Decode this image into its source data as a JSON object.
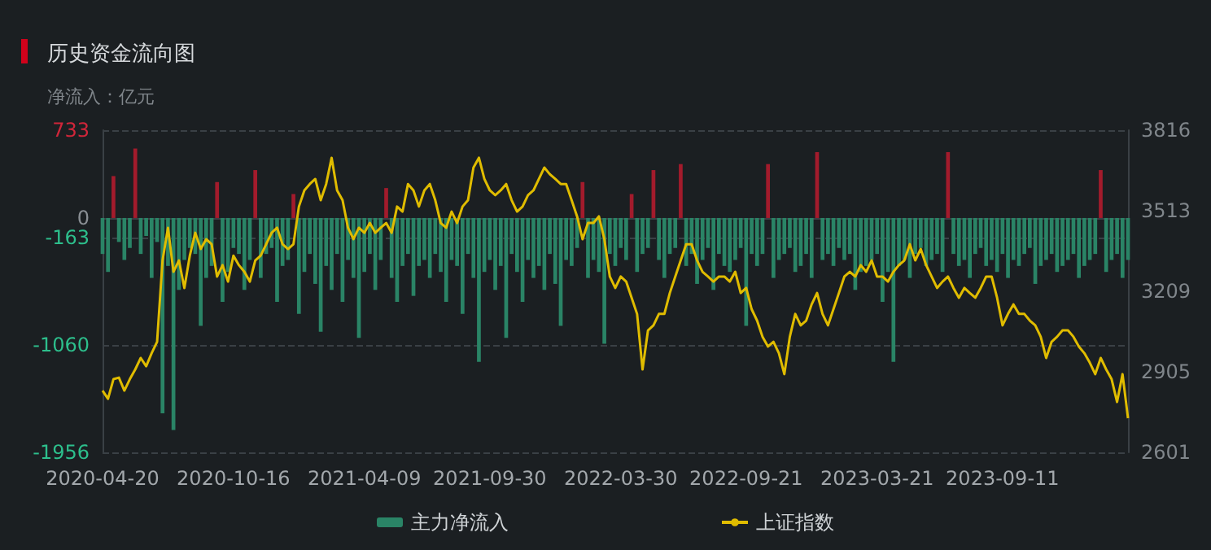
{
  "chart_data": {
    "type": "bar",
    "title": "历史资金流向图",
    "subtitle": "净流入：亿元",
    "categories": [
      "2020-04-20",
      null,
      null,
      null,
      null,
      null,
      null,
      null,
      null,
      null,
      null,
      null,
      null,
      null,
      null,
      null,
      null,
      null,
      null,
      null,
      null,
      null,
      null,
      null,
      "2020-10-16",
      null,
      null,
      null,
      null,
      null,
      null,
      null,
      null,
      null,
      null,
      null,
      null,
      null,
      null,
      null,
      null,
      null,
      null,
      null,
      null,
      null,
      null,
      null,
      "2021-04-09",
      null,
      null,
      null,
      null,
      null,
      null,
      null,
      null,
      null,
      null,
      null,
      null,
      null,
      null,
      null,
      null,
      null,
      null,
      null,
      null,
      null,
      null,
      "2021-09-30",
      null,
      null,
      null,
      null,
      null,
      null,
      null,
      null,
      null,
      null,
      null,
      null,
      null,
      null,
      null,
      null,
      null,
      null,
      null,
      null,
      null,
      null,
      null,
      "2022-03-30",
      null,
      null,
      null,
      null,
      null,
      null,
      null,
      null,
      null,
      null,
      null,
      null,
      null,
      null,
      null,
      null,
      null,
      null,
      null,
      null,
      null,
      null,
      "2022-09-21",
      null,
      null,
      null,
      null,
      null,
      null,
      null,
      null,
      null,
      null,
      null,
      null,
      null,
      null,
      null,
      null,
      null,
      null,
      null,
      null,
      null,
      null,
      null,
      "2023-03-21",
      null,
      null,
      null,
      null,
      null,
      null,
      null,
      null,
      null,
      null,
      null,
      null,
      null,
      null,
      null,
      null,
      null,
      null,
      null,
      null,
      null,
      null,
      "2023-09-11",
      null,
      null,
      null,
      null,
      null,
      null,
      null,
      null,
      null,
      null,
      null,
      null,
      null,
      null,
      null,
      null,
      null,
      null,
      null,
      null,
      null,
      null,
      null
    ],
    "series": [
      {
        "name": "主力净流入",
        "color": "#2a8466",
        "values": [
          -300,
          -450,
          350,
          -200,
          -350,
          -250,
          580,
          -300,
          -150,
          -500,
          -200,
          -1630,
          -400,
          -1770,
          -600,
          -350,
          -250,
          -300,
          -900,
          -500,
          -400,
          300,
          -700,
          -450,
          -250,
          -300,
          -600,
          -350,
          400,
          -500,
          -300,
          -250,
          -700,
          -400,
          -350,
          200,
          -800,
          -450,
          -300,
          -550,
          -950,
          -400,
          -600,
          -300,
          -700,
          -350,
          -500,
          -1000,
          -450,
          -300,
          -600,
          -350,
          250,
          -500,
          -700,
          -400,
          -300,
          -650,
          -400,
          -350,
          -500,
          -300,
          -450,
          -700,
          -350,
          -400,
          -800,
          -300,
          -500,
          -1200,
          -450,
          -350,
          -600,
          -400,
          -1000,
          -300,
          -450,
          -700,
          -350,
          -500,
          -400,
          -600,
          -300,
          -550,
          -900,
          -350,
          -400,
          -250,
          300,
          -500,
          -350,
          -450,
          -1050,
          -300,
          -400,
          -250,
          -350,
          200,
          -450,
          -300,
          -250,
          400,
          -350,
          -500,
          -300,
          -250,
          450,
          -400,
          -300,
          -550,
          -350,
          -250,
          -600,
          -300,
          -400,
          -450,
          -350,
          -250,
          -900,
          -300,
          -400,
          -300,
          450,
          -500,
          -350,
          -300,
          -250,
          -450,
          -400,
          -300,
          -500,
          550,
          -350,
          -300,
          -400,
          -250,
          -350,
          -300,
          -600,
          -450,
          -400,
          -350,
          -300,
          -700,
          -450,
          -1200,
          -400,
          -350,
          -500,
          -300,
          -250,
          -400,
          -350,
          -300,
          -450,
          550,
          -300,
          -400,
          -350,
          -500,
          -300,
          -250,
          -400,
          -350,
          -450,
          -300,
          -500,
          -350,
          -400,
          -300,
          -250,
          -550,
          -400,
          -350,
          -300,
          -450,
          -400,
          -350,
          -300,
          -500,
          -400,
          -350,
          -300,
          400,
          -450,
          -350,
          -300,
          -500,
          -350
        ],
        "colors": [
          "#2a8466",
          "#2a8466",
          "#a31b2c",
          "#2a8466",
          "#2a8466",
          "#2a8466",
          "#a31b2c",
          "#2a8466",
          "#2a8466",
          "#2a8466",
          "#2a8466",
          "#2a8466",
          "#2a8466",
          "#2a8466",
          "#2a8466",
          "#2a8466",
          "#2a8466",
          "#2a8466",
          "#2a8466",
          "#2a8466",
          "#2a8466",
          "#a31b2c",
          "#2a8466",
          "#2a8466",
          "#2a8466",
          "#2a8466",
          "#2a8466",
          "#2a8466",
          "#a31b2c",
          "#2a8466",
          "#2a8466",
          "#2a8466",
          "#2a8466",
          "#2a8466",
          "#2a8466",
          "#a31b2c",
          "#2a8466",
          "#2a8466",
          "#2a8466",
          "#2a8466",
          "#2a8466",
          "#2a8466",
          "#2a8466",
          "#2a8466",
          "#2a8466",
          "#2a8466",
          "#2a8466",
          "#2a8466",
          "#2a8466",
          "#2a8466",
          "#2a8466",
          "#2a8466",
          "#a31b2c",
          "#2a8466",
          "#2a8466",
          "#2a8466",
          "#2a8466",
          "#2a8466",
          "#2a8466",
          "#2a8466",
          "#2a8466",
          "#2a8466",
          "#2a8466",
          "#2a8466",
          "#2a8466",
          "#2a8466",
          "#2a8466",
          "#2a8466",
          "#2a8466",
          "#2a8466",
          "#2a8466",
          "#2a8466",
          "#2a8466",
          "#2a8466",
          "#2a8466",
          "#2a8466",
          "#2a8466",
          "#2a8466",
          "#2a8466",
          "#2a8466",
          "#2a8466",
          "#2a8466",
          "#2a8466",
          "#2a8466",
          "#2a8466",
          "#2a8466",
          "#2a8466",
          "#2a8466",
          "#a31b2c",
          "#2a8466",
          "#2a8466",
          "#2a8466",
          "#2a8466",
          "#2a8466",
          "#2a8466",
          "#2a8466",
          "#2a8466",
          "#a31b2c",
          "#2a8466",
          "#2a8466",
          "#2a8466",
          "#a31b2c",
          "#2a8466",
          "#2a8466",
          "#2a8466",
          "#2a8466",
          "#a31b2c",
          "#2a8466",
          "#2a8466",
          "#2a8466",
          "#2a8466",
          "#2a8466",
          "#2a8466",
          "#2a8466",
          "#2a8466",
          "#2a8466",
          "#2a8466",
          "#2a8466",
          "#2a8466",
          "#2a8466",
          "#2a8466",
          "#2a8466",
          "#a31b2c",
          "#2a8466",
          "#2a8466",
          "#2a8466",
          "#2a8466",
          "#2a8466",
          "#2a8466",
          "#2a8466",
          "#2a8466",
          "#a31b2c",
          "#2a8466",
          "#2a8466",
          "#2a8466",
          "#2a8466",
          "#2a8466",
          "#2a8466",
          "#2a8466",
          "#2a8466",
          "#2a8466",
          "#2a8466",
          "#2a8466",
          "#2a8466",
          "#2a8466",
          "#2a8466",
          "#2a8466",
          "#2a8466",
          "#2a8466",
          "#2a8466",
          "#2a8466",
          "#2a8466",
          "#2a8466",
          "#2a8466",
          "#2a8466",
          "#a31b2c",
          "#2a8466",
          "#2a8466",
          "#2a8466",
          "#2a8466",
          "#2a8466",
          "#2a8466",
          "#2a8466",
          "#2a8466",
          "#2a8466",
          "#2a8466",
          "#2a8466",
          "#2a8466",
          "#2a8466",
          "#2a8466",
          "#2a8466",
          "#2a8466",
          "#2a8466",
          "#2a8466",
          "#2a8466",
          "#2a8466",
          "#2a8466",
          "#2a8466",
          "#2a8466",
          "#2a8466",
          "#2a8466",
          "#2a8466",
          "#2a8466",
          "#a31b2c",
          "#2a8466",
          "#2a8466",
          "#2a8466",
          "#2a8466",
          "#2a8466"
        ]
      },
      {
        "name": "上证指数",
        "type": "line",
        "axis": "y2",
        "color": "#e0bc00",
        "values": [
          2834,
          2803,
          2877,
          2883,
          2834,
          2877,
          2914,
          2957,
          2926,
          2975,
          3018,
          3325,
          3448,
          3282,
          3325,
          3221,
          3343,
          3429,
          3368,
          3405,
          3386,
          3264,
          3307,
          3245,
          3343,
          3307,
          3282,
          3245,
          3325,
          3343,
          3386,
          3429,
          3448,
          3386,
          3368,
          3386,
          3528,
          3589,
          3613,
          3632,
          3552,
          3613,
          3712,
          3589,
          3552,
          3448,
          3405,
          3448,
          3429,
          3466,
          3429,
          3448,
          3466,
          3429,
          3528,
          3509,
          3613,
          3589,
          3528,
          3589,
          3613,
          3552,
          3466,
          3448,
          3509,
          3466,
          3528,
          3552,
          3675,
          3712,
          3632,
          3589,
          3571,
          3589,
          3613,
          3552,
          3509,
          3528,
          3571,
          3589,
          3632,
          3675,
          3650,
          3632,
          3613,
          3613,
          3552,
          3491,
          3405,
          3466,
          3466,
          3491,
          3405,
          3264,
          3221,
          3264,
          3245,
          3184,
          3123,
          2914,
          3061,
          3080,
          3123,
          3123,
          3202,
          3264,
          3325,
          3386,
          3386,
          3325,
          3282,
          3264,
          3245,
          3264,
          3264,
          3245,
          3282,
          3202,
          3221,
          3141,
          3098,
          3037,
          3000,
          3018,
          2975,
          2896,
          3037,
          3123,
          3080,
          3098,
          3159,
          3202,
          3123,
          3080,
          3141,
          3202,
          3264,
          3282,
          3264,
          3307,
          3282,
          3325,
          3264,
          3264,
          3245,
          3282,
          3307,
          3325,
          3386,
          3325,
          3368,
          3307,
          3264,
          3221,
          3245,
          3264,
          3221,
          3184,
          3221,
          3202,
          3184,
          3221,
          3264,
          3264,
          3184,
          3080,
          3123,
          3159,
          3123,
          3123,
          3098,
          3080,
          3037,
          2957,
          3018,
          3037,
          3061,
          3061,
          3037,
          3000,
          2975,
          2939,
          2896,
          2957,
          2914,
          2877,
          2791,
          2896,
          2730
        ]
      }
    ],
    "ylim": [
      -1956,
      733
    ],
    "yticks": [
      733,
      0,
      -163,
      -1060,
      -1956
    ],
    "y2lim": [
      2601,
      3816
    ],
    "y2ticks": [
      2601,
      2905,
      3209,
      3513,
      3816
    ],
    "grid": "y",
    "legend": "bottom",
    "marker": "none",
    "line_style": "solid"
  }
}
